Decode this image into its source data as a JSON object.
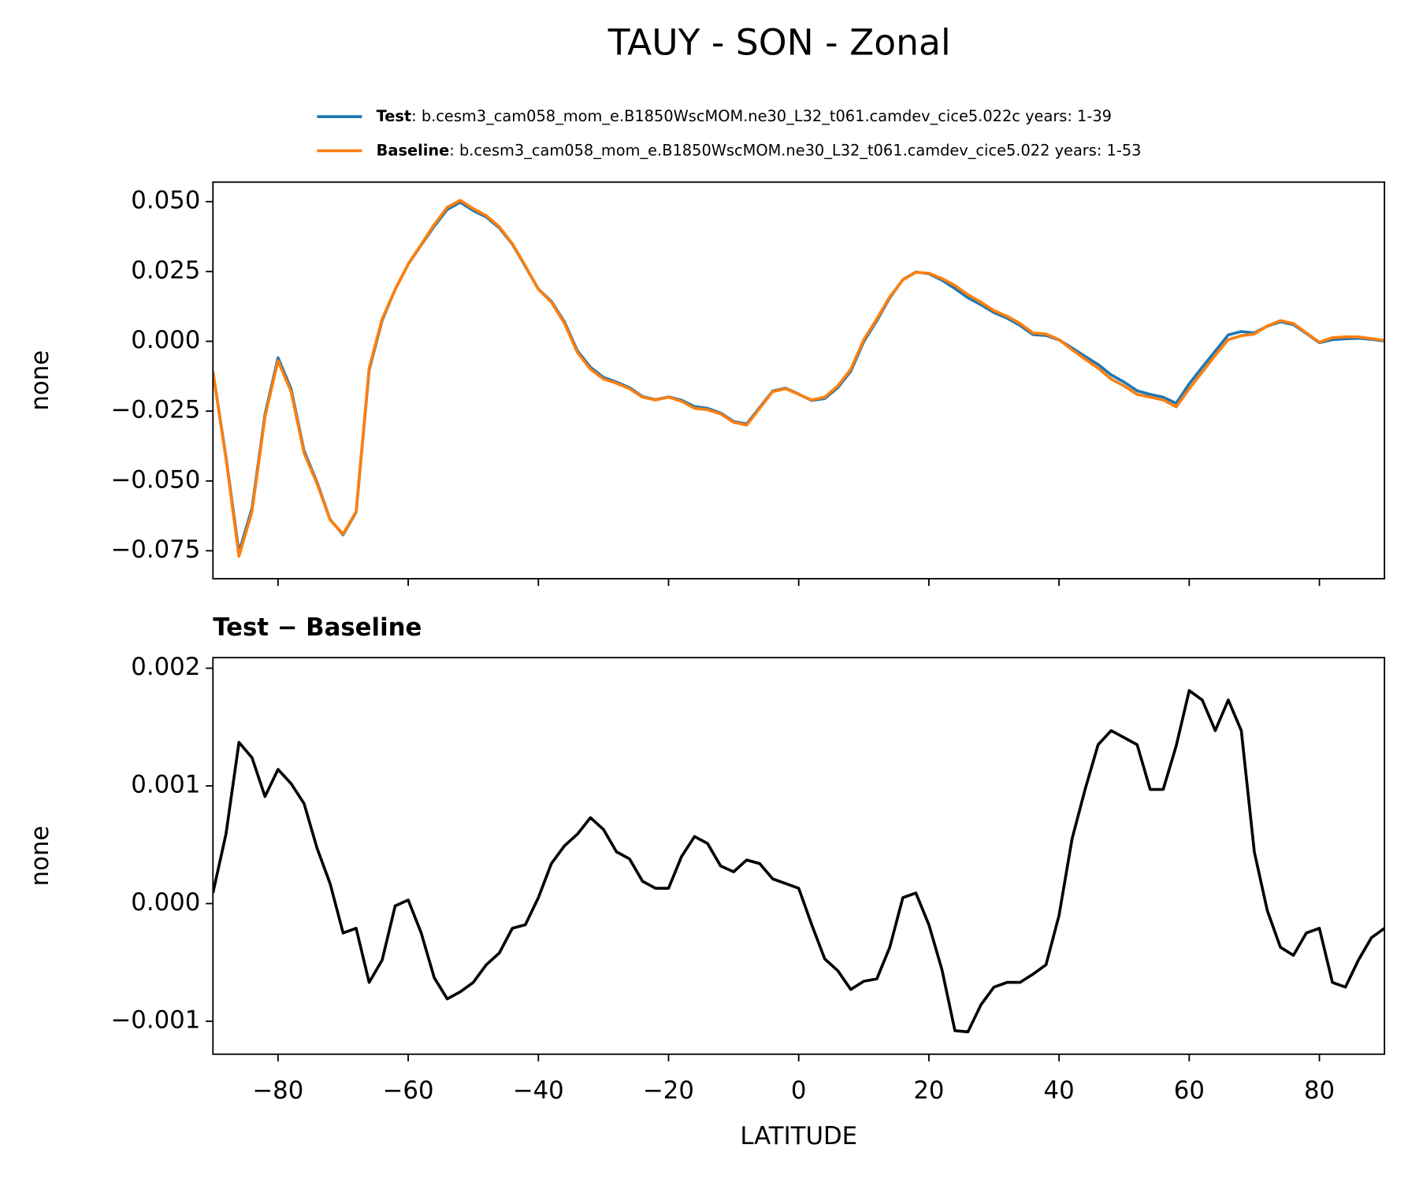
{
  "chart_data": [
    {
      "type": "line",
      "title": "TAUY - SON - Zonal",
      "ylabel": "none",
      "x": [
        -90,
        -88,
        -86,
        -84,
        -82,
        -80,
        -78,
        -76,
        -74,
        -72,
        -70,
        -68,
        -66,
        -64,
        -62,
        -60,
        -58,
        -56,
        -54,
        -52,
        -50,
        -48,
        -46,
        -44,
        -42,
        -40,
        -38,
        -36,
        -34,
        -32,
        -30,
        -28,
        -26,
        -24,
        -22,
        -20,
        -18,
        -16,
        -14,
        -12,
        -10,
        -8,
        -6,
        -4,
        -2,
        0,
        2,
        4,
        6,
        8,
        10,
        12,
        14,
        16,
        18,
        20,
        22,
        24,
        26,
        28,
        30,
        32,
        34,
        36,
        38,
        40,
        42,
        44,
        46,
        48,
        50,
        52,
        54,
        56,
        58,
        60,
        62,
        64,
        66,
        68,
        70,
        72,
        74,
        76,
        78,
        80,
        82,
        84,
        86,
        88,
        90
      ],
      "series": [
        {
          "name": "Test",
          "label": ":  b.cesm3_cam058_mom_e.B1850WscMOM.ne30_L32_t061.camdev_cice5.022c  years: 1-39",
          "color": "#1f77b4",
          "values": [
            -0.0109,
            -0.0414,
            -0.0756,
            -0.0598,
            -0.0261,
            -0.0059,
            -0.017,
            -0.0392,
            -0.0505,
            -0.0638,
            -0.0693,
            -0.0612,
            -0.0103,
            0.0075,
            0.0186,
            0.0276,
            0.0345,
            0.0412,
            0.0472,
            0.0498,
            0.0468,
            0.0445,
            0.0406,
            0.0348,
            0.0268,
            0.0187,
            0.0143,
            0.007,
            -0.0034,
            -0.0093,
            -0.0129,
            -0.0146,
            -0.0166,
            -0.0198,
            -0.0209,
            -0.0199,
            -0.0211,
            -0.0234,
            -0.024,
            -0.0257,
            -0.0287,
            -0.0296,
            -0.0237,
            -0.0178,
            -0.0168,
            -0.0189,
            -0.0212,
            -0.0205,
            -0.0166,
            -0.0107,
            -0.0001,
            0.0074,
            0.0156,
            0.0221,
            0.0248,
            0.0242,
            0.0219,
            0.0189,
            0.0156,
            0.0131,
            0.0103,
            0.0083,
            0.0057,
            0.0024,
            0.0021,
            0.0005,
            -0.0024,
            -0.0054,
            -0.0083,
            -0.012,
            -0.0146,
            -0.0177,
            -0.019,
            -0.02,
            -0.0222,
            -0.0152,
            -0.0093,
            -0.0035,
            0.0023,
            0.0035,
            0.003,
            0.0054,
            0.007,
            0.006,
            0.0028,
            -0.0005,
            0.0006,
            0.0009,
            0.0011,
            0.0007,
            0.0001
          ]
        },
        {
          "name": "Baseline",
          "label": ":  b.cesm3_cam058_mom_e.B1850WscMOM.ne30_L32_t061.camdev_cice5.022  years: 1-53",
          "color": "#ff7f0e",
          "values": [
            -0.011,
            -0.042,
            -0.077,
            -0.061,
            -0.027,
            -0.007,
            -0.018,
            -0.04,
            -0.051,
            -0.064,
            -0.069,
            -0.061,
            -0.0096,
            0.008,
            0.0186,
            0.0276,
            0.0347,
            0.0418,
            0.048,
            0.0505,
            0.0475,
            0.045,
            0.041,
            0.035,
            0.027,
            0.0186,
            0.014,
            0.0065,
            -0.004,
            -0.01,
            -0.0135,
            -0.015,
            -0.017,
            -0.02,
            -0.021,
            -0.02,
            -0.0215,
            -0.024,
            -0.0245,
            -0.026,
            -0.029,
            -0.03,
            -0.024,
            -0.018,
            -0.017,
            -0.019,
            -0.021,
            -0.02,
            -0.016,
            -0.01,
            0.0006,
            0.008,
            0.016,
            0.022,
            0.0247,
            0.0244,
            0.0225,
            0.02,
            0.0167,
            0.014,
            0.011,
            0.009,
            0.0064,
            0.003,
            0.0026,
            0.0006,
            -0.003,
            -0.0064,
            -0.0096,
            -0.0135,
            -0.016,
            -0.019,
            -0.02,
            -0.021,
            -0.0235,
            -0.017,
            -0.011,
            -0.005,
            0.0006,
            0.002,
            0.0026,
            0.0055,
            0.0074,
            0.0064,
            0.003,
            -0.0003,
            0.0013,
            0.0016,
            0.0016,
            0.001,
            0.0003
          ]
        }
      ],
      "xlim": [
        -90,
        90
      ],
      "xticks": [
        {
          "value": -80,
          "label": "−80"
        },
        {
          "value": -60,
          "label": "−60"
        },
        {
          "value": -40,
          "label": "−40"
        },
        {
          "value": -20,
          "label": "−20"
        },
        0,
        20,
        40,
        60,
        80
      ],
      "ylim": [
        -0.085,
        0.057
      ],
      "yticks": [
        {
          "value": -0.075,
          "label": "−0.075"
        },
        {
          "value": -0.05,
          "label": "−0.050"
        },
        {
          "value": -0.025,
          "label": "−0.025"
        },
        {
          "value": 0,
          "label": "0.000"
        },
        {
          "value": 0.025,
          "label": "0.025"
        },
        {
          "value": 0.05,
          "label": "0.050"
        }
      ]
    },
    {
      "type": "line",
      "title": "Test − Baseline",
      "ylabel": "none",
      "xlabel": "LATITUDE",
      "x": [
        -90,
        -88,
        -86,
        -84,
        -82,
        -80,
        -78,
        -76,
        -74,
        -72,
        -70,
        -68,
        -66,
        -64,
        -62,
        -60,
        -58,
        -56,
        -54,
        -52,
        -50,
        -48,
        -46,
        -44,
        -42,
        -40,
        -38,
        -36,
        -34,
        -32,
        -30,
        -28,
        -26,
        -24,
        -22,
        -20,
        -18,
        -16,
        -14,
        -12,
        -10,
        -8,
        -6,
        -4,
        -2,
        0,
        2,
        4,
        6,
        8,
        10,
        12,
        14,
        16,
        18,
        20,
        22,
        24,
        26,
        28,
        30,
        32,
        34,
        36,
        38,
        40,
        42,
        44,
        46,
        48,
        50,
        52,
        54,
        56,
        58,
        60,
        62,
        64,
        66,
        68,
        70,
        72,
        74,
        76,
        78,
        80,
        82,
        84,
        86,
        88,
        90
      ],
      "series": [
        {
          "color": "#000000",
          "values": [
            9e-05,
            0.00059,
            0.00137,
            0.00124,
            0.00091,
            0.00114,
            0.00102,
            0.00085,
            0.00047,
            0.00017,
            -0.00025,
            -0.00021,
            -0.00067,
            -0.00048,
            -2e-05,
            3e-05,
            -0.00025,
            -0.00063,
            -0.00081,
            -0.00075,
            -0.00067,
            -0.00052,
            -0.00042,
            -0.00021,
            -0.00018,
            5e-05,
            0.00034,
            0.00049,
            0.00059,
            0.00073,
            0.00063,
            0.00044,
            0.00038,
            0.00019,
            0.00013,
            0.00013,
            0.0004,
            0.00057,
            0.00051,
            0.00032,
            0.00027,
            0.00037,
            0.00034,
            0.00021,
            0.00017,
            0.00013,
            -0.00018,
            -0.00047,
            -0.00057,
            -0.00073,
            -0.00066,
            -0.00064,
            -0.00037,
            5e-05,
            9e-05,
            -0.00018,
            -0.00056,
            -0.00108,
            -0.00109,
            -0.00086,
            -0.00071,
            -0.00067,
            -0.00067,
            -0.0006,
            -0.00052,
            -0.0001,
            0.00055,
            0.00097,
            0.00135,
            0.00147,
            0.00141,
            0.00135,
            0.00097,
            0.00097,
            0.00134,
            0.00181,
            0.00173,
            0.00147,
            0.00173,
            0.00147,
            0.00044,
            -6e-05,
            -0.00037,
            -0.00044,
            -0.00025,
            -0.00021,
            -0.00067,
            -0.00071,
            -0.00048,
            -0.00029,
            -0.00021
          ]
        }
      ],
      "xlim": [
        -90,
        90
      ],
      "xticks": [
        {
          "value": -80,
          "label": "−80"
        },
        {
          "value": -60,
          "label": "−60"
        },
        {
          "value": -40,
          "label": "−40"
        },
        {
          "value": -20,
          "label": "−20"
        },
        0,
        20,
        40,
        60,
        80
      ],
      "ylim": [
        -0.00128,
        0.00209
      ],
      "yticks": [
        {
          "value": -0.001,
          "label": "−0.001"
        },
        {
          "value": 0,
          "label": "0.000"
        },
        {
          "value": 0.001,
          "label": "0.001"
        },
        {
          "value": 0.002,
          "label": "0.002"
        }
      ]
    }
  ]
}
